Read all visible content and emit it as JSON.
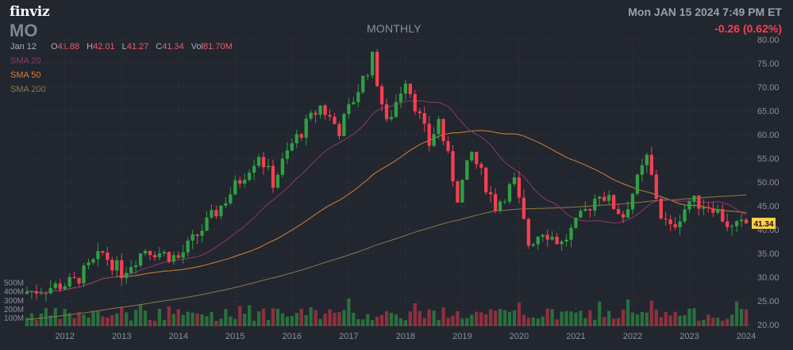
{
  "header": {
    "logo": "finviz",
    "ticker": "MO",
    "interval": "MONTHLY",
    "datetime": "Mon JAN 15 2024 7:49 PM ET",
    "change": "-0.26 (0.62%)"
  },
  "ohlc": {
    "date": "Jan 12",
    "o_label": "O",
    "o": "41.88",
    "h_label": "H",
    "h": "42.01",
    "l_label": "L",
    "l": "41.27",
    "c_label": "C",
    "c": "41.34",
    "vol_label": "Vol",
    "vol": "81.70M"
  },
  "colors": {
    "background": "#22262f",
    "up": "#2fa043",
    "down": "#f63f52",
    "vol_up": "#2a7d40",
    "vol_down": "#a13341",
    "sma20": "#8b3a6b",
    "sma50": "#d08435",
    "sma200": "#8e7a45",
    "price_tag": "#ffcf4a"
  },
  "chart_data": {
    "type": "candlestick",
    "title": "MO",
    "interval": "MONTHLY",
    "x_ticks": [
      "2012",
      "2013",
      "2014",
      "2015",
      "2016",
      "2017",
      "2018",
      "2019",
      "2020",
      "2021",
      "2022",
      "2023",
      "2024"
    ],
    "x_range": [
      "2011-05",
      "2024-02"
    ],
    "y_ticks": [
      20,
      25,
      30,
      35,
      40,
      45,
      50,
      55,
      60,
      65,
      70,
      75,
      80
    ],
    "y_tick_labels": [
      "20.00",
      "25.00",
      "30.00",
      "35.00",
      "40.00",
      "45.00",
      "50.00",
      "55.00",
      "60.00",
      "65.00",
      "70.00",
      "75.00",
      "80.00"
    ],
    "ylim": [
      20,
      80
    ],
    "volume_ticks": [
      "100M",
      "200M",
      "300M",
      "400M",
      "500M"
    ],
    "volume_tick_values": [
      100,
      200,
      300,
      400,
      500
    ],
    "last_price": "41.34",
    "legend": [
      {
        "name": "SMA 20",
        "color": "#8b3a6b"
      },
      {
        "name": "SMA 50",
        "color": "#d08435"
      },
      {
        "name": "SMA 200",
        "color": "#8e7a45"
      }
    ],
    "anchors": [
      {
        "date": "2011-06",
        "close": 27
      },
      {
        "date": "2012-03",
        "close": 29
      },
      {
        "date": "2012-09",
        "close": 35
      },
      {
        "date": "2013-01",
        "close": 31
      },
      {
        "date": "2013-06",
        "close": 36
      },
      {
        "date": "2014-01",
        "close": 34
      },
      {
        "date": "2014-10",
        "close": 45
      },
      {
        "date": "2015-06",
        "close": 56
      },
      {
        "date": "2015-09",
        "close": 50
      },
      {
        "date": "2016-01",
        "close": 58
      },
      {
        "date": "2016-07",
        "close": 66
      },
      {
        "date": "2016-11",
        "close": 61
      },
      {
        "date": "2017-06",
        "close": 76
      },
      {
        "date": "2017-09",
        "close": 62
      },
      {
        "date": "2018-01",
        "close": 72
      },
      {
        "date": "2018-06",
        "close": 58
      },
      {
        "date": "2018-08",
        "close": 63
      },
      {
        "date": "2018-12",
        "close": 47
      },
      {
        "date": "2019-03",
        "close": 56
      },
      {
        "date": "2019-08",
        "close": 45
      },
      {
        "date": "2019-12",
        "close": 50
      },
      {
        "date": "2020-03",
        "close": 37
      },
      {
        "date": "2020-06",
        "close": 40
      },
      {
        "date": "2020-10",
        "close": 37
      },
      {
        "date": "2021-01",
        "close": 41
      },
      {
        "date": "2021-06",
        "close": 48
      },
      {
        "date": "2021-11",
        "close": 43
      },
      {
        "date": "2022-04",
        "close": 55
      },
      {
        "date": "2022-07",
        "close": 43
      },
      {
        "date": "2022-09",
        "close": 40
      },
      {
        "date": "2023-01",
        "close": 46
      },
      {
        "date": "2023-06",
        "close": 45
      },
      {
        "date": "2023-10",
        "close": 40
      },
      {
        "date": "2024-01",
        "close": 41.34
      }
    ]
  }
}
